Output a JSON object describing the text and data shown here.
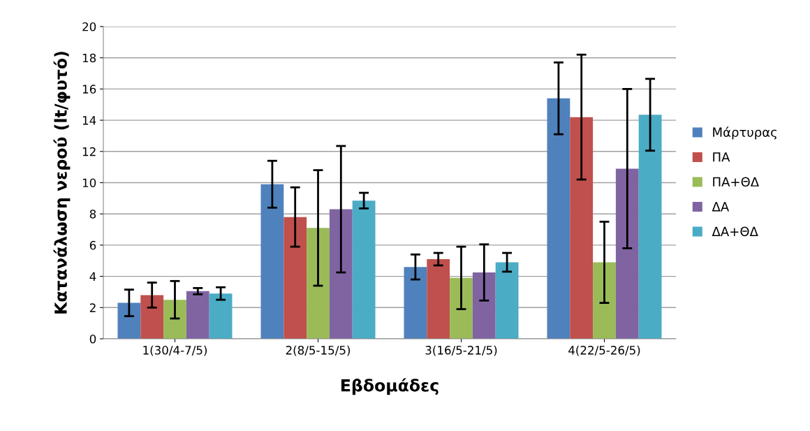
{
  "chart_data": {
    "type": "bar",
    "xlabel": "Εβδομάδες",
    "ylabel": "Κατανάλωση νερού (lt/φυτό)",
    "categories": [
      "1(30/4-7/5)",
      "2(8/5-15/5)",
      "3(16/5-21/5)",
      "4(22/5-26/5)"
    ],
    "series": [
      {
        "name": "Μάρτυρας",
        "color": "#4f81bd",
        "values": [
          2.3,
          9.9,
          4.6,
          15.4
        ],
        "errors": [
          0.85,
          1.5,
          0.8,
          2.3
        ]
      },
      {
        "name": "ΠΑ",
        "color": "#c0504d",
        "values": [
          2.8,
          7.8,
          5.1,
          14.2
        ],
        "errors": [
          0.8,
          1.9,
          0.4,
          4.0
        ]
      },
      {
        "name": "ΠΑ+ΘΔ",
        "color": "#9bbb59",
        "values": [
          2.5,
          7.1,
          3.9,
          4.9
        ],
        "errors": [
          1.2,
          3.7,
          2.0,
          2.6
        ]
      },
      {
        "name": "ΔΑ",
        "color": "#8064a2",
        "values": [
          3.05,
          8.3,
          4.25,
          10.9
        ],
        "errors": [
          0.2,
          4.05,
          1.8,
          5.1
        ]
      },
      {
        "name": "ΔΑ+ΘΔ",
        "color": "#4bacc6",
        "values": [
          2.9,
          8.85,
          4.9,
          14.35
        ],
        "errors": [
          0.4,
          0.5,
          0.6,
          2.3
        ]
      }
    ],
    "ylim": [
      0,
      20
    ],
    "yticks": [
      0,
      2,
      4,
      6,
      8,
      10,
      12,
      14,
      16,
      18,
      20
    ],
    "grid": "y",
    "legend": "right"
  }
}
